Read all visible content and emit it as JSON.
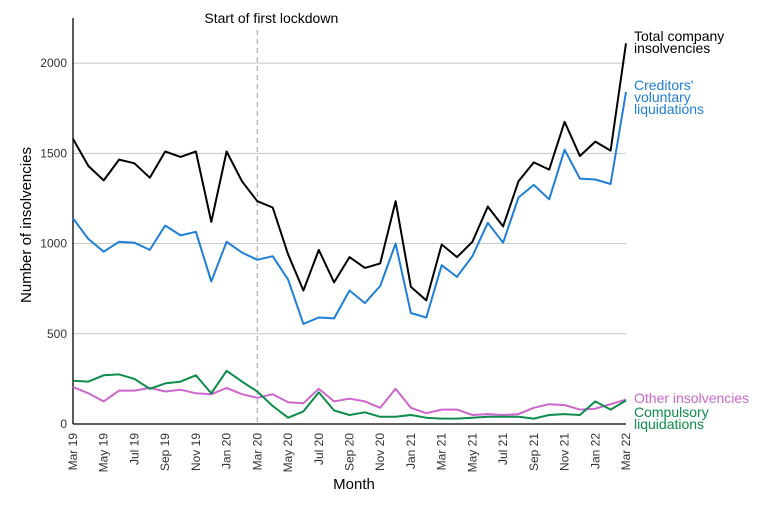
{
  "chart_data": {
    "type": "line",
    "xlabel": "Month",
    "ylabel": "Number of insolvencies",
    "ylim": [
      0,
      2250
    ],
    "yticks": [
      0,
      500,
      1000,
      1500,
      2000
    ],
    "grid": true,
    "x": [
      "Mar 19",
      "Apr 19",
      "May 19",
      "Jun 19",
      "Jul 19",
      "Aug 19",
      "Sep 19",
      "Oct 19",
      "Nov 19",
      "Dec 19",
      "Jan 20",
      "Feb 20",
      "Mar 20",
      "Apr 20",
      "May 20",
      "Jun 20",
      "Jul 20",
      "Aug 20",
      "Sep 20",
      "Oct 20",
      "Nov 20",
      "Dec 20",
      "Jan 21",
      "Feb 21",
      "Mar 21",
      "Apr 21",
      "May 21",
      "Jun 21",
      "Jul 21",
      "Aug 21",
      "Sep 21",
      "Oct 21",
      "Nov 21",
      "Dec 21",
      "Jan 22",
      "Feb 22",
      "Mar 22"
    ],
    "x_tick_labels": [
      "Mar 19",
      "May 19",
      "Jul 19",
      "Sep 19",
      "Nov 19",
      "Jan 20",
      "Mar 20",
      "May 20",
      "Jul 20",
      "Sep 20",
      "Nov 20",
      "Jan 21",
      "Mar 21",
      "May 21",
      "Jul 21",
      "Sep 21",
      "Nov 21",
      "Jan 22",
      "Mar 22"
    ],
    "annotation": {
      "label": "Start of first lockdown",
      "x": "Mar 20"
    },
    "series": [
      {
        "name": "Total company insolvencies",
        "color": "#000000",
        "values": [
          1580,
          1430,
          1350,
          1465,
          1445,
          1365,
          1510,
          1480,
          1510,
          1120,
          1510,
          1345,
          1235,
          1200,
          940,
          740,
          965,
          785,
          925,
          865,
          890,
          1235,
          760,
          685,
          995,
          925,
          1010,
          1205,
          1095,
          1345,
          1450,
          1410,
          1675,
          1485,
          1565,
          1515,
          2110
        ]
      },
      {
        "name": "Creditors' voluntary liquidations",
        "color": "#1f7fd6",
        "values": [
          1140,
          1025,
          955,
          1010,
          1005,
          965,
          1100,
          1045,
          1065,
          790,
          1010,
          950,
          910,
          930,
          800,
          555,
          590,
          585,
          740,
          670,
          765,
          1000,
          615,
          590,
          880,
          815,
          930,
          1115,
          1005,
          1255,
          1325,
          1245,
          1520,
          1360,
          1355,
          1330,
          1840
        ]
      },
      {
        "name": "Other insolvencies",
        "color": "#cc66cc",
        "values": [
          205,
          170,
          125,
          185,
          185,
          200,
          180,
          190,
          170,
          165,
          200,
          165,
          145,
          165,
          120,
          115,
          195,
          125,
          140,
          125,
          90,
          195,
          90,
          60,
          80,
          80,
          50,
          55,
          50,
          55,
          90,
          110,
          105,
          80,
          85,
          110,
          135
        ]
      },
      {
        "name": "Compulsory liquidations",
        "color": "#0d8c4a",
        "values": [
          240,
          235,
          270,
          275,
          250,
          195,
          225,
          235,
          270,
          170,
          295,
          235,
          180,
          100,
          35,
          70,
          175,
          75,
          50,
          65,
          40,
          40,
          50,
          35,
          30,
          30,
          35,
          40,
          40,
          40,
          30,
          50,
          55,
          50,
          125,
          80,
          130
        ]
      }
    ]
  }
}
